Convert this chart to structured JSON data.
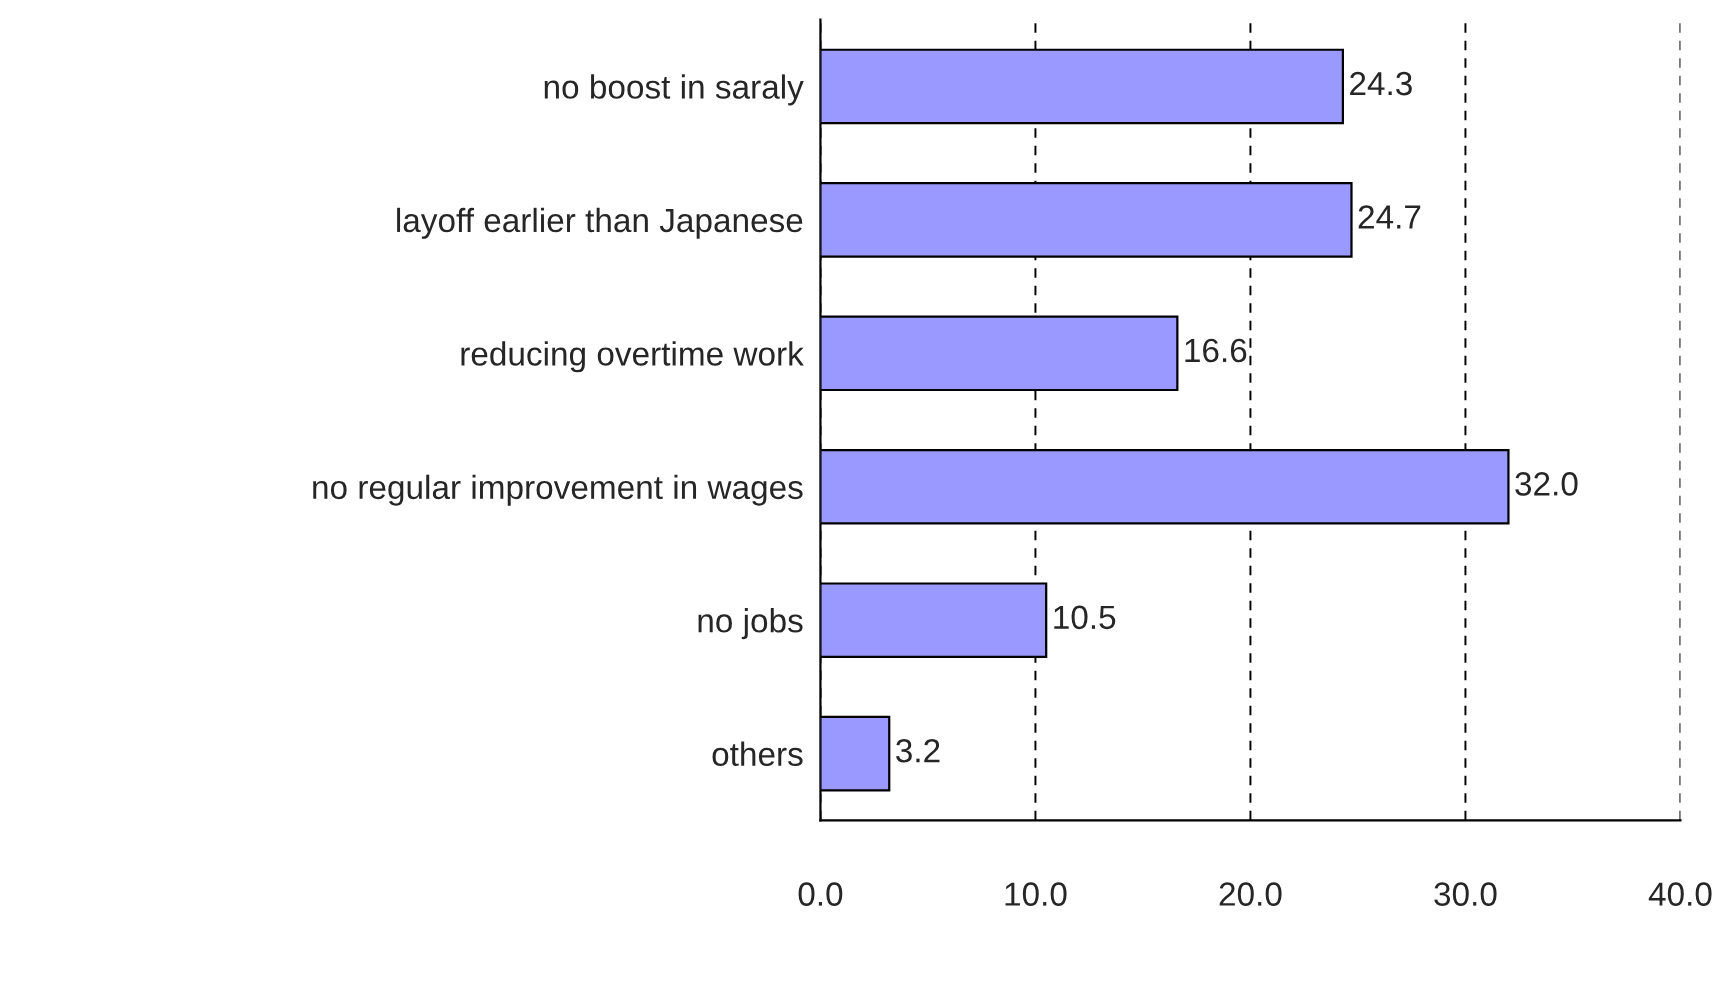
{
  "chart_data": {
    "type": "bar",
    "orientation": "horizontal",
    "categories": [
      "no boost in saraly",
      "layoff earlier than Japanese",
      "reducing overtime work",
      "no regular improvement in wages",
      "no jobs",
      "others"
    ],
    "values": [
      24.3,
      24.7,
      16.6,
      32.0,
      10.5,
      3.2
    ],
    "color": "#9999ff",
    "xlim": [
      0,
      40
    ],
    "xticks": [
      {
        "value": 0,
        "label": "0.0"
      },
      {
        "value": 10,
        "label": "10.0"
      },
      {
        "value": 20,
        "label": "20.0"
      },
      {
        "value": 30,
        "label": "30.0"
      },
      {
        "value": 40,
        "label": "40.0"
      }
    ],
    "value_labels": [
      "24.3",
      "24.7",
      "16.6",
      "32.0",
      "10.5",
      "3.2"
    ],
    "grid": "x"
  }
}
